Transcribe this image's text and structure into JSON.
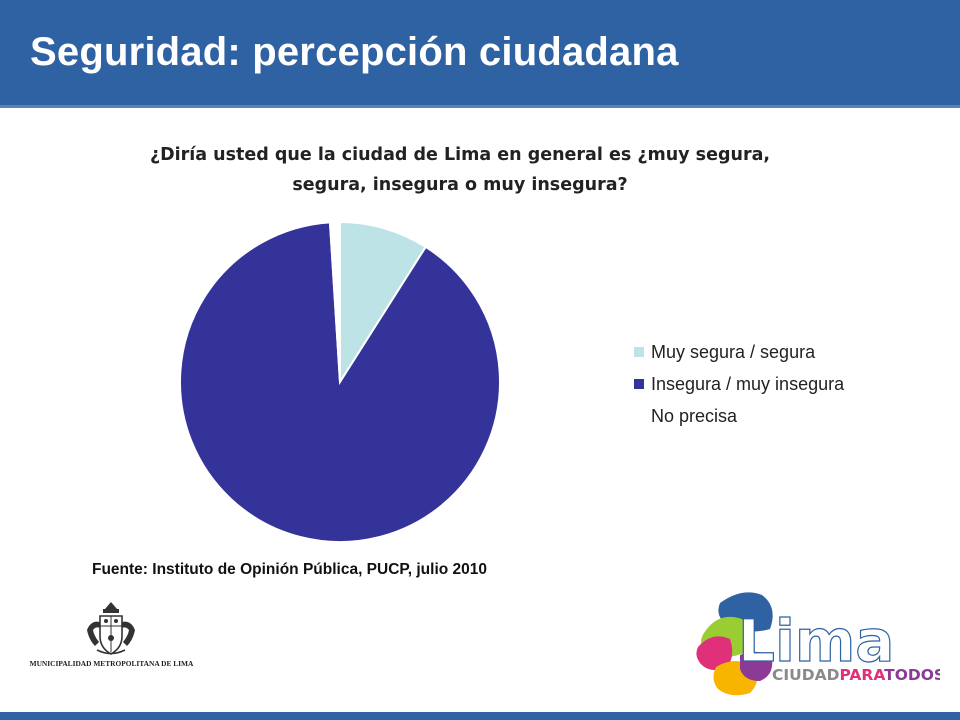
{
  "header": {
    "title": "Seguridad: percepción ciudadana"
  },
  "chart_data": {
    "type": "pie",
    "title_lines": [
      "¿Diría usted que la ciudad de Lima en general es ¿muy segura,",
      "segura, insegura o muy insegura?"
    ],
    "series": [
      {
        "name": "Muy segura / segura",
        "value": 9,
        "color": "#bde3e6"
      },
      {
        "name": "Insegura / muy insegura",
        "value": 90,
        "color": "#333399"
      },
      {
        "name": "No precisa",
        "value": 1,
        "color": "#ffffff"
      }
    ],
    "legend_position": "right"
  },
  "source": "Fuente: Instituto de Opinión Pública, PUCP, julio 2010",
  "seal": {
    "caption": "MUNICIPALIDAD METROPOLITANA DE LIMA"
  },
  "logo": {
    "word": "Lima",
    "tagline_a": "CIUDAD",
    "tagline_b": "PARA",
    "tagline_c": "TODOS"
  }
}
